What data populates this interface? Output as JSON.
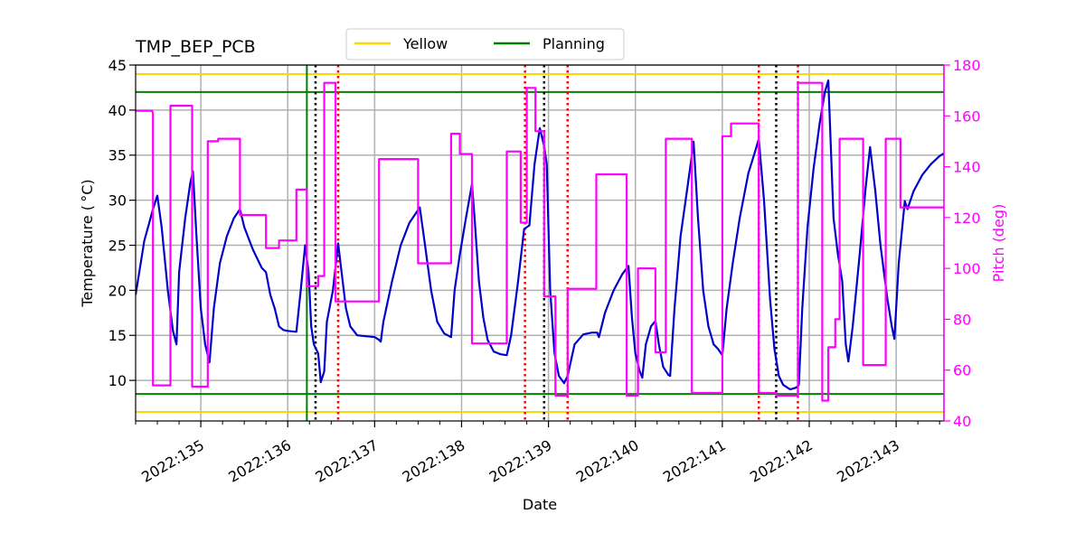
{
  "chart_data": {
    "type": "line",
    "title": "TMP_BEP_PCB",
    "xlabel": "Date",
    "ylabel": "Temperature ($^\\circ$C)",
    "ylabel_display": "Temperature ( °C)",
    "y2label": "Pitch (deg)",
    "xlim": [
      134.25,
      143.55
    ],
    "ylim": [
      5.5,
      45
    ],
    "y2lim": [
      40,
      180
    ],
    "x_ticks": [
      {
        "value": 135,
        "label": "2022:135"
      },
      {
        "value": 136,
        "label": "2022:136"
      },
      {
        "value": 137,
        "label": "2022:137"
      },
      {
        "value": 138,
        "label": "2022:138"
      },
      {
        "value": 139,
        "label": "2022:139"
      },
      {
        "value": 140,
        "label": "2022:140"
      },
      {
        "value": 141,
        "label": "2022:141"
      },
      {
        "value": 142,
        "label": "2022:142"
      },
      {
        "value": 143,
        "label": "2022:143"
      }
    ],
    "y_ticks": [
      10,
      15,
      20,
      25,
      30,
      35,
      40,
      45
    ],
    "y2_ticks": [
      40,
      60,
      80,
      100,
      120,
      140,
      160,
      180
    ],
    "grid": true,
    "legend": {
      "placement": "top-center, above plot",
      "entries": [
        "Yellow",
        "Planning"
      ]
    },
    "limits": [
      {
        "name": "Yellow",
        "values": [
          44,
          6.5
        ],
        "color": "#ffd700"
      },
      {
        "name": "Planning",
        "values": [
          42,
          8.5
        ],
        "color": "#008000"
      }
    ],
    "now_line": {
      "x": 136.22,
      "color": "#008000"
    },
    "vlines_black": [
      136.32,
      138.95,
      141.62
    ],
    "vlines_red": [
      136.58,
      138.73,
      139.22,
      141.42,
      141.87
    ],
    "colors": {
      "temperature": "#0000cd",
      "pitch": "#ff00ff",
      "grid": "#b0b0b0"
    },
    "series": [
      {
        "axis": "left",
        "color": "#0000cd",
        "points": [
          [
            134.25,
            19.5
          ],
          [
            134.35,
            25.5
          ],
          [
            134.45,
            29.0
          ],
          [
            134.5,
            30.5
          ],
          [
            134.55,
            27.0
          ],
          [
            134.62,
            20.0
          ],
          [
            134.68,
            15.5
          ],
          [
            134.72,
            14.0
          ],
          [
            134.75,
            22.0
          ],
          [
            134.82,
            28.0
          ],
          [
            134.88,
            32.0
          ],
          [
            134.91,
            33.2
          ],
          [
            134.95,
            26.0
          ],
          [
            135.0,
            18.0
          ],
          [
            135.05,
            14.0
          ],
          [
            135.1,
            12.0
          ],
          [
            135.15,
            18.0
          ],
          [
            135.22,
            23.0
          ],
          [
            135.3,
            26.0
          ],
          [
            135.38,
            28.0
          ],
          [
            135.45,
            29.0
          ],
          [
            135.5,
            27.0
          ],
          [
            135.6,
            24.5
          ],
          [
            135.7,
            22.5
          ],
          [
            135.75,
            22.0
          ],
          [
            135.8,
            19.5
          ],
          [
            135.85,
            18.0
          ],
          [
            135.9,
            16.0
          ],
          [
            135.95,
            15.6
          ],
          [
            136.0,
            15.5
          ],
          [
            136.1,
            15.4
          ],
          [
            136.15,
            20.0
          ],
          [
            136.2,
            25.0
          ],
          [
            136.24,
            22.0
          ],
          [
            136.27,
            16.0
          ],
          [
            136.3,
            14.0
          ],
          [
            136.35,
            13.0
          ],
          [
            136.38,
            9.8
          ],
          [
            136.42,
            11.0
          ],
          [
            136.45,
            16.5
          ],
          [
            136.52,
            20.0
          ],
          [
            136.58,
            25.2
          ],
          [
            136.62,
            22.0
          ],
          [
            136.67,
            18.0
          ],
          [
            136.72,
            16.0
          ],
          [
            136.8,
            15.0
          ],
          [
            136.9,
            14.9
          ],
          [
            137.0,
            14.8
          ],
          [
            137.05,
            14.5
          ],
          [
            137.07,
            14.3
          ],
          [
            137.1,
            16.5
          ],
          [
            137.2,
            21.0
          ],
          [
            137.3,
            25.0
          ],
          [
            137.4,
            27.5
          ],
          [
            137.52,
            29.2
          ],
          [
            137.58,
            25.0
          ],
          [
            137.65,
            20.0
          ],
          [
            137.72,
            16.5
          ],
          [
            137.8,
            15.2
          ],
          [
            137.88,
            14.8
          ],
          [
            137.92,
            20.0
          ],
          [
            137.98,
            24.0
          ],
          [
            138.05,
            28.0
          ],
          [
            138.12,
            31.8
          ],
          [
            138.15,
            28.0
          ],
          [
            138.2,
            21.0
          ],
          [
            138.25,
            17.0
          ],
          [
            138.3,
            14.5
          ],
          [
            138.37,
            13.2
          ],
          [
            138.45,
            12.9
          ],
          [
            138.52,
            12.8
          ],
          [
            138.57,
            15.0
          ],
          [
            138.65,
            21.0
          ],
          [
            138.72,
            26.8
          ],
          [
            138.78,
            27.2
          ],
          [
            138.84,
            34.0
          ],
          [
            138.9,
            38.0
          ],
          [
            138.95,
            36.0
          ],
          [
            138.98,
            34.0
          ],
          [
            139.02,
            20.0
          ],
          [
            139.07,
            13.0
          ],
          [
            139.12,
            10.5
          ],
          [
            139.18,
            9.7
          ],
          [
            139.22,
            10.5
          ],
          [
            139.3,
            14.0
          ],
          [
            139.4,
            15.1
          ],
          [
            139.5,
            15.3
          ],
          [
            139.56,
            15.3
          ],
          [
            139.58,
            14.8
          ],
          [
            139.65,
            17.5
          ],
          [
            139.75,
            20.0
          ],
          [
            139.85,
            21.8
          ],
          [
            139.92,
            22.7
          ],
          [
            139.96,
            17.0
          ],
          [
            140.0,
            13.0
          ],
          [
            140.05,
            11.0
          ],
          [
            140.08,
            10.3
          ],
          [
            140.12,
            14.0
          ],
          [
            140.18,
            16.0
          ],
          [
            140.23,
            16.6
          ],
          [
            140.27,
            14.0
          ],
          [
            140.32,
            11.5
          ],
          [
            140.38,
            10.6
          ],
          [
            140.4,
            10.5
          ],
          [
            140.45,
            18.0
          ],
          [
            140.52,
            26.0
          ],
          [
            140.6,
            31.5
          ],
          [
            140.65,
            35.0
          ],
          [
            140.67,
            36.5
          ],
          [
            140.72,
            28.0
          ],
          [
            140.78,
            20.0
          ],
          [
            140.84,
            16.0
          ],
          [
            140.9,
            14.0
          ],
          [
            140.95,
            13.5
          ],
          [
            141.0,
            12.8
          ],
          [
            141.05,
            18.0
          ],
          [
            141.12,
            23.0
          ],
          [
            141.2,
            28.0
          ],
          [
            141.3,
            33.0
          ],
          [
            141.38,
            35.5
          ],
          [
            141.42,
            36.8
          ],
          [
            141.48,
            30.0
          ],
          [
            141.55,
            19.0
          ],
          [
            141.6,
            13.5
          ],
          [
            141.65,
            10.5
          ],
          [
            141.7,
            9.5
          ],
          [
            141.78,
            9.0
          ],
          [
            141.85,
            9.2
          ],
          [
            141.88,
            9.5
          ],
          [
            141.92,
            18.0
          ],
          [
            141.98,
            27.0
          ],
          [
            142.05,
            33.5
          ],
          [
            142.12,
            38.5
          ],
          [
            142.18,
            42.0
          ],
          [
            142.22,
            43.3
          ],
          [
            142.28,
            28.0
          ],
          [
            142.33,
            24.0
          ],
          [
            142.38,
            21.0
          ],
          [
            142.42,
            14.0
          ],
          [
            142.45,
            12.1
          ],
          [
            142.5,
            16.0
          ],
          [
            142.58,
            24.0
          ],
          [
            142.65,
            31.5
          ],
          [
            142.7,
            35.9
          ],
          [
            142.76,
            31.0
          ],
          [
            142.82,
            25.0
          ],
          [
            142.9,
            19.0
          ],
          [
            142.95,
            16.0
          ],
          [
            142.98,
            14.6
          ],
          [
            143.03,
            23.0
          ],
          [
            143.1,
            29.9
          ],
          [
            143.13,
            29.0
          ],
          [
            143.2,
            31.0
          ],
          [
            143.3,
            32.8
          ],
          [
            143.4,
            34.0
          ],
          [
            143.5,
            34.9
          ],
          [
            143.55,
            35.2
          ]
        ]
      },
      {
        "axis": "right",
        "color": "#ff00ff",
        "points": [
          [
            134.25,
            162.0
          ],
          [
            134.44,
            162.0
          ],
          [
            134.45,
            161.0
          ],
          [
            134.45,
            54.0
          ],
          [
            134.65,
            54.0
          ],
          [
            134.65,
            164.0
          ],
          [
            134.9,
            164.0
          ],
          [
            134.9,
            53.5
          ],
          [
            135.08,
            53.5
          ],
          [
            135.08,
            150.0
          ],
          [
            135.2,
            150.0
          ],
          [
            135.2,
            151.0
          ],
          [
            135.45,
            151.0
          ],
          [
            135.45,
            121.0
          ],
          [
            135.75,
            121.0
          ],
          [
            135.75,
            108.0
          ],
          [
            135.9,
            108.0
          ],
          [
            135.9,
            111.0
          ],
          [
            136.1,
            111.0
          ],
          [
            136.1,
            131.0
          ],
          [
            136.22,
            131.0
          ],
          [
            136.22,
            93.0
          ],
          [
            136.35,
            93.0
          ],
          [
            136.35,
            97.0
          ],
          [
            136.42,
            97.0
          ],
          [
            136.42,
            173.0
          ],
          [
            136.55,
            173.0
          ],
          [
            136.55,
            87.0
          ],
          [
            137.05,
            87.0
          ],
          [
            137.05,
            143.0
          ],
          [
            137.5,
            143.0
          ],
          [
            137.5,
            102.0
          ],
          [
            137.88,
            102.0
          ],
          [
            137.88,
            153.0
          ],
          [
            137.98,
            153.0
          ],
          [
            137.98,
            145.0
          ],
          [
            138.12,
            145.0
          ],
          [
            138.12,
            70.5
          ],
          [
            138.52,
            70.5
          ],
          [
            138.52,
            146.0
          ],
          [
            138.68,
            146.0
          ],
          [
            138.68,
            118.0
          ],
          [
            138.75,
            118.0
          ],
          [
            138.75,
            171.0
          ],
          [
            138.85,
            171.0
          ],
          [
            138.85,
            154.0
          ],
          [
            138.95,
            154.0
          ],
          [
            138.95,
            89.0
          ],
          [
            139.08,
            89.0
          ],
          [
            139.08,
            50.0
          ],
          [
            139.22,
            50.0
          ],
          [
            139.22,
            92.0
          ],
          [
            139.55,
            92.0
          ],
          [
            139.55,
            137.0
          ],
          [
            139.9,
            137.0
          ],
          [
            139.9,
            50.0
          ],
          [
            140.03,
            50.0
          ],
          [
            140.03,
            100.0
          ],
          [
            140.23,
            100.0
          ],
          [
            140.23,
            67.0
          ],
          [
            140.35,
            67.0
          ],
          [
            140.35,
            151.0
          ],
          [
            140.65,
            151.0
          ],
          [
            140.65,
            51.0
          ],
          [
            141.0,
            51.0
          ],
          [
            141.0,
            152.0
          ],
          [
            141.1,
            152.0
          ],
          [
            141.1,
            157.0
          ],
          [
            141.42,
            157.0
          ],
          [
            141.42,
            51.0
          ],
          [
            141.62,
            51.0
          ],
          [
            141.62,
            50.0
          ],
          [
            141.87,
            50.0
          ],
          [
            141.87,
            173.0
          ],
          [
            142.15,
            173.0
          ],
          [
            142.15,
            48.0
          ],
          [
            142.22,
            48.0
          ],
          [
            142.22,
            69.0
          ],
          [
            142.3,
            69.0
          ],
          [
            142.3,
            80.0
          ],
          [
            142.35,
            80.0
          ],
          [
            142.35,
            151.0
          ],
          [
            142.62,
            151.0
          ],
          [
            142.62,
            62.0
          ],
          [
            142.88,
            62.0
          ],
          [
            142.88,
            151.0
          ],
          [
            143.05,
            151.0
          ],
          [
            143.05,
            124.0
          ],
          [
            143.55,
            124.0
          ]
        ]
      }
    ]
  }
}
